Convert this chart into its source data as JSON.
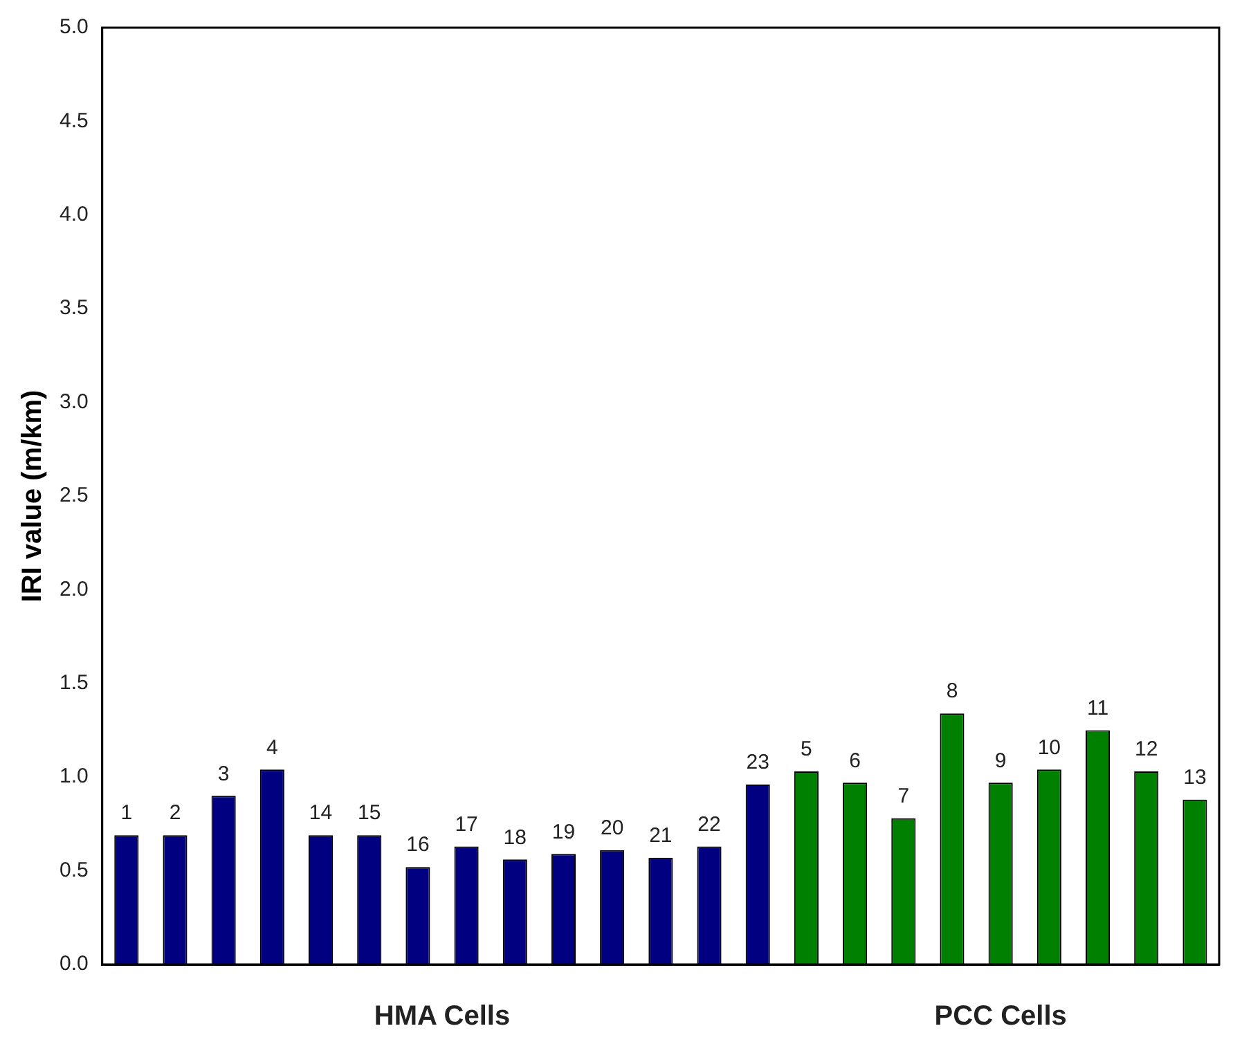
{
  "chart_data": {
    "type": "bar",
    "ylabel": "IRI value (m/km)",
    "categories": [
      "1",
      "2",
      "3",
      "4",
      "14",
      "15",
      "16",
      "17",
      "18",
      "19",
      "20",
      "21",
      "22",
      "23",
      "5",
      "6",
      "7",
      "8",
      "9",
      "10",
      "11",
      "12",
      "13"
    ],
    "series": [
      {
        "name": "HMA Cells",
        "color": "#000080",
        "values": [
          0.69,
          0.69,
          0.9,
          1.04,
          0.69,
          0.69,
          0.52,
          0.63,
          0.56,
          0.59,
          0.61,
          0.57,
          0.63,
          0.96,
          null,
          null,
          null,
          null,
          null,
          null,
          null,
          null,
          null
        ]
      },
      {
        "name": "PCC Cells",
        "color": "#008000",
        "values": [
          null,
          null,
          null,
          null,
          null,
          null,
          null,
          null,
          null,
          null,
          null,
          null,
          null,
          null,
          1.03,
          0.97,
          0.78,
          1.34,
          0.97,
          1.04,
          1.25,
          1.03,
          0.88
        ]
      }
    ],
    "ylim": [
      0,
      5
    ],
    "yticks": [
      {
        "value": 0,
        "label": "0.0"
      },
      {
        "value": 0.5,
        "label": "0.5"
      },
      {
        "value": 1,
        "label": "1.0"
      },
      {
        "value": 1.5,
        "label": "1.5"
      },
      {
        "value": 2,
        "label": "2.0"
      },
      {
        "value": 2.5,
        "label": "2.5"
      },
      {
        "value": 3,
        "label": "3.0"
      },
      {
        "value": 3.5,
        "label": "3.5"
      },
      {
        "value": 4,
        "label": "4.0"
      },
      {
        "value": 4.5,
        "label": "4.5"
      },
      {
        "value": 5,
        "label": "5.0"
      }
    ],
    "grid": false,
    "legend": false
  }
}
